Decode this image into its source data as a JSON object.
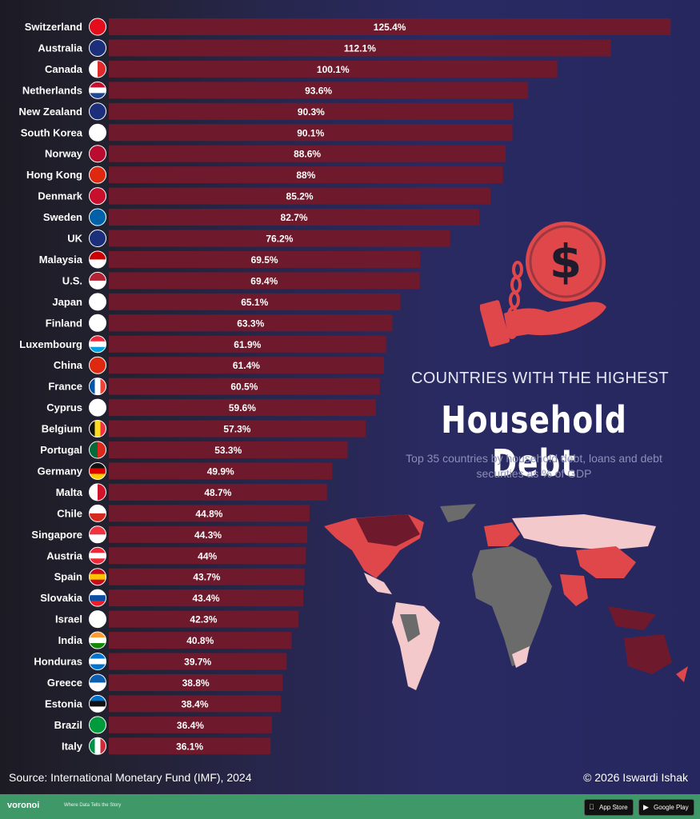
{
  "header": {
    "kicker": "COUNTRIES WITH THE HIGHEST",
    "title": "Household Debt",
    "subtitle_line1": "Top 35 countries by household debt, loans and debt",
    "subtitle_line2": "securities as % of GDP"
  },
  "source": "Source: International Monetary Fund (IMF), 2024",
  "copyright": "© 2026 Iswardi Ishak",
  "footer": {
    "brand": "voronoi",
    "tagline": "Where Data Tells the Story",
    "app_store": "App Store",
    "google_play": "Google Play"
  },
  "colors": {
    "bar": "#6e1a2c",
    "accent": "#e0474a",
    "background": "#272760"
  },
  "chart_data": {
    "type": "bar",
    "orientation": "horizontal",
    "unit": "% of GDP",
    "categories": [
      "Switzerland",
      "Australia",
      "Canada",
      "Netherlands",
      "New Zealand",
      "South Korea",
      "Norway",
      "Hong Kong",
      "Denmark",
      "Sweden",
      "UK",
      "Malaysia",
      "U.S.",
      "Japan",
      "Finland",
      "Luxembourg",
      "China",
      "France",
      "Cyprus",
      "Belgium",
      "Portugal",
      "Germany",
      "Malta",
      "Chile",
      "Singapore",
      "Austria",
      "Spain",
      "Slovakia",
      "Israel",
      "India",
      "Honduras",
      "Greece",
      "Estonia",
      "Brazil",
      "Italy"
    ],
    "values": [
      125.4,
      112.1,
      100.1,
      93.6,
      90.3,
      90.1,
      88.6,
      88,
      85.2,
      82.7,
      76.2,
      69.5,
      69.4,
      65.1,
      63.3,
      61.9,
      61.4,
      60.5,
      59.6,
      57.3,
      53.3,
      49.9,
      48.7,
      44.8,
      44.3,
      44,
      43.7,
      43.4,
      42.3,
      40.8,
      39.7,
      38.8,
      38.4,
      36.4,
      36.1
    ],
    "value_labels": [
      "125.4%",
      "112.1%",
      "100.1%",
      "93.6%",
      "90.3%",
      "90.1%",
      "88.6%",
      "88%",
      "85.2%",
      "82.7%",
      "76.2%",
      "69.5%",
      "69.4%",
      "65.1%",
      "63.3%",
      "61.9%",
      "61.4%",
      "60.5%",
      "59.6%",
      "57.3%",
      "53.3%",
      "49.9%",
      "48.7%",
      "44.8%",
      "44.3%",
      "44%",
      "43.7%",
      "43.4%",
      "42.3%",
      "40.8%",
      "39.7%",
      "38.8%",
      "38.4%",
      "36.4%",
      "36.1%"
    ],
    "flag_icons": [
      "switzerland-flag-icon",
      "australia-flag-icon",
      "canada-flag-icon",
      "netherlands-flag-icon",
      "new-zealand-flag-icon",
      "south-korea-flag-icon",
      "norway-flag-icon",
      "hong-kong-flag-icon",
      "denmark-flag-icon",
      "sweden-flag-icon",
      "uk-flag-icon",
      "malaysia-flag-icon",
      "us-flag-icon",
      "japan-flag-icon",
      "finland-flag-icon",
      "luxembourg-flag-icon",
      "china-flag-icon",
      "france-flag-icon",
      "cyprus-flag-icon",
      "belgium-flag-icon",
      "portugal-flag-icon",
      "germany-flag-icon",
      "malta-flag-icon",
      "chile-flag-icon",
      "singapore-flag-icon",
      "austria-flag-icon",
      "spain-flag-icon",
      "slovakia-flag-icon",
      "israel-flag-icon",
      "india-flag-icon",
      "honduras-flag-icon",
      "greece-flag-icon",
      "estonia-flag-icon",
      "brazil-flag-icon",
      "italy-flag-icon"
    ],
    "title": "Household Debt",
    "xlabel": "",
    "ylabel": ""
  }
}
